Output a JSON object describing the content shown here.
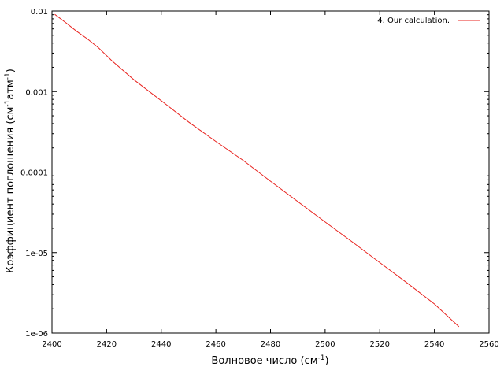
{
  "chart_data": {
    "type": "line",
    "xlabel": {
      "main": "Волновое число (см",
      "sup": "-1",
      "tail": ")"
    },
    "ylabel": {
      "p1": "Коэффициент поглощения (см",
      "s1": "-1",
      "p2": "атм",
      "s2": "-1",
      "p3": ")"
    },
    "xlim": [
      2400,
      2560
    ],
    "ylim": [
      1e-06,
      0.01
    ],
    "y_scale": "log",
    "x_ticks": [
      2400,
      2420,
      2440,
      2460,
      2480,
      2500,
      2520,
      2540,
      2560
    ],
    "x_tick_labels": [
      "2400",
      "2420",
      "2440",
      "2460",
      "2480",
      "2500",
      "2520",
      "2540",
      "2560"
    ],
    "y_ticks": [
      0.01,
      0.001,
      0.0001,
      1e-05,
      1e-06
    ],
    "y_tick_labels": [
      "0.01",
      "0.001",
      "0.0001",
      "1e-05",
      "1e-06"
    ],
    "grid": false,
    "legend_position": "top-right",
    "series": [
      {
        "name": "4. Our calculation.",
        "color": "#e8231f",
        "x": [
          2401,
          2405,
          2409,
          2413,
          2417,
          2422,
          2430,
          2440,
          2450,
          2460,
          2470,
          2480,
          2490,
          2500,
          2510,
          2520,
          2530,
          2540,
          2549
        ],
        "y": [
          0.0091,
          0.0072,
          0.0056,
          0.0045,
          0.0035,
          0.0024,
          0.0014,
          0.00077,
          0.00042,
          0.00024,
          0.00014,
          7.7e-05,
          4.3e-05,
          2.4e-05,
          1.35e-05,
          7.5e-06,
          4.2e-06,
          2.3e-06,
          1.2e-06
        ]
      }
    ]
  }
}
